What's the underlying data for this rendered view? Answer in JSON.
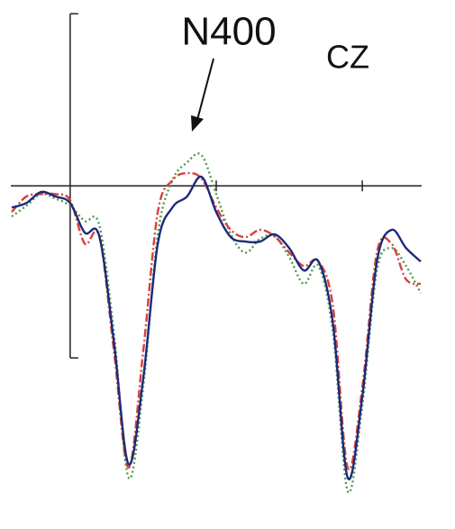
{
  "chart_data": {
    "type": "line",
    "annotations": [
      "N400",
      "CZ"
    ],
    "x": [
      -160,
      -120,
      -80,
      -40,
      0,
      40,
      80,
      120,
      160,
      200,
      240,
      280,
      320,
      360,
      400,
      440,
      480,
      520,
      560,
      600,
      640,
      680,
      720,
      760,
      800,
      840,
      880,
      920,
      960
    ],
    "series": [
      {
        "color": "#4a9a4a",
        "dash": "2,3",
        "values": [
          -0.89,
          -0.58,
          -0.24,
          -0.37,
          -0.58,
          -1.02,
          -1.15,
          -4.29,
          -8.48,
          -5.86,
          -1.41,
          0.16,
          0.68,
          0.89,
          -0.24,
          -1.41,
          -1.94,
          -1.54,
          -1.47,
          -2.07,
          -2.85,
          -2.33,
          -4.29,
          -8.87,
          -6.39,
          -2.46,
          -1.81,
          -2.33,
          -3.12
        ]
      },
      {
        "color": "#d8403a",
        "dash": "9,3,2,3",
        "values": [
          -0.76,
          -0.31,
          -0.24,
          -0.24,
          -0.42,
          -1.68,
          -1.47,
          -4.81,
          -8.19,
          -4.81,
          -0.76,
          0.16,
          0.37,
          0.21,
          -0.63,
          -1.28,
          -1.49,
          -1.28,
          -1.47,
          -1.94,
          -2.33,
          -2.2,
          -3.53,
          -8.19,
          -5.86,
          -1.94,
          -1.68,
          -2.72,
          -2.85
        ]
      },
      {
        "color": "#1c2a7a",
        "dash": "none",
        "values": [
          -0.63,
          -0.5,
          -0.18,
          -0.31,
          -0.5,
          -1.36,
          -1.47,
          -4.55,
          -8.09,
          -5.6,
          -1.68,
          -0.63,
          -0.31,
          0.26,
          -0.76,
          -1.49,
          -1.62,
          -1.62,
          -1.41,
          -1.81,
          -2.46,
          -2.2,
          -4.03,
          -8.48,
          -6.13,
          -2.2,
          -1.28,
          -1.81,
          -2.2
        ]
      }
    ],
    "xlim": [
      -165,
      970
    ],
    "xticks": [
      400,
      800
    ],
    "ylim": [
      -9.5,
      5.4
    ],
    "yticks": [
      -5,
      5
    ]
  }
}
